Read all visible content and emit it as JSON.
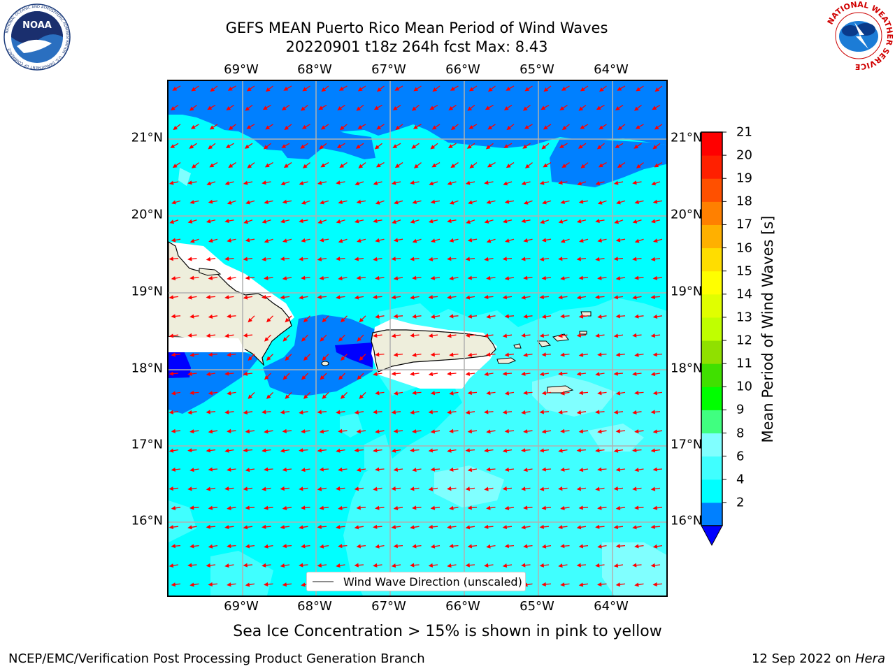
{
  "header": {
    "title_line1": "GEFS MEAN Puerto Rico Mean Period of Wind Waves",
    "title_line2": "20220901 t18z 264h fcst   Max: 8.43"
  },
  "logos": {
    "left": {
      "icon": "noaa-logo",
      "text": "NOAA",
      "ring_text": "NATIONAL OCEANIC AND ATMOSPHERIC ADMINISTRATION · U.S. DEPARTMENT OF COMMERCE"
    },
    "right": {
      "icon": "nws-logo",
      "ring_text": "NATIONAL WEATHER SERVICE"
    }
  },
  "map": {
    "lon_labels": [
      "69°W",
      "68°W",
      "67°W",
      "66°W",
      "65°W",
      "64°W"
    ],
    "lat_labels": [
      "21°N",
      "20°N",
      "19°N",
      "18°N",
      "17°N",
      "16°N"
    ],
    "legend_label": "Wind Wave Direction (unscaled)",
    "colors": {
      "ocean": "#00ffff",
      "band_2_4": "#0080ff",
      "band_below_2": "#0000ff",
      "band_6_8": "#40ffff",
      "land": "#eeeedc",
      "arrow": "#ff0000",
      "grid": "#b0b0b0"
    }
  },
  "colorbar": {
    "title": "Mean Period of Wind Waves [s]",
    "tick_labels": [
      "21",
      "20",
      "19",
      "18",
      "17",
      "16",
      "15",
      "14",
      "13",
      "12",
      "11",
      "10",
      "9",
      "8",
      "6",
      "4",
      "2"
    ],
    "colors_bottom_to_top": [
      "#0080ff",
      "#00ffff",
      "#40ffff",
      "#80ffff",
      "#40ff80",
      "#00ff00",
      "#40e000",
      "#90e000",
      "#c0ff00",
      "#e0ff00",
      "#ffff00",
      "#ffdd00",
      "#ffb000",
      "#ff8000",
      "#ff5000",
      "#ff2000",
      "#ff0000"
    ],
    "extend_color": "#0000ff"
  },
  "caption": "Sea Ice Concentration > 15% is shown in pink to yellow",
  "footer": {
    "left": "NCEP/EMC/Verification Post Processing Product Generation Branch",
    "right_date": "12 Sep 2022 on",
    "right_host": "Hera"
  }
}
